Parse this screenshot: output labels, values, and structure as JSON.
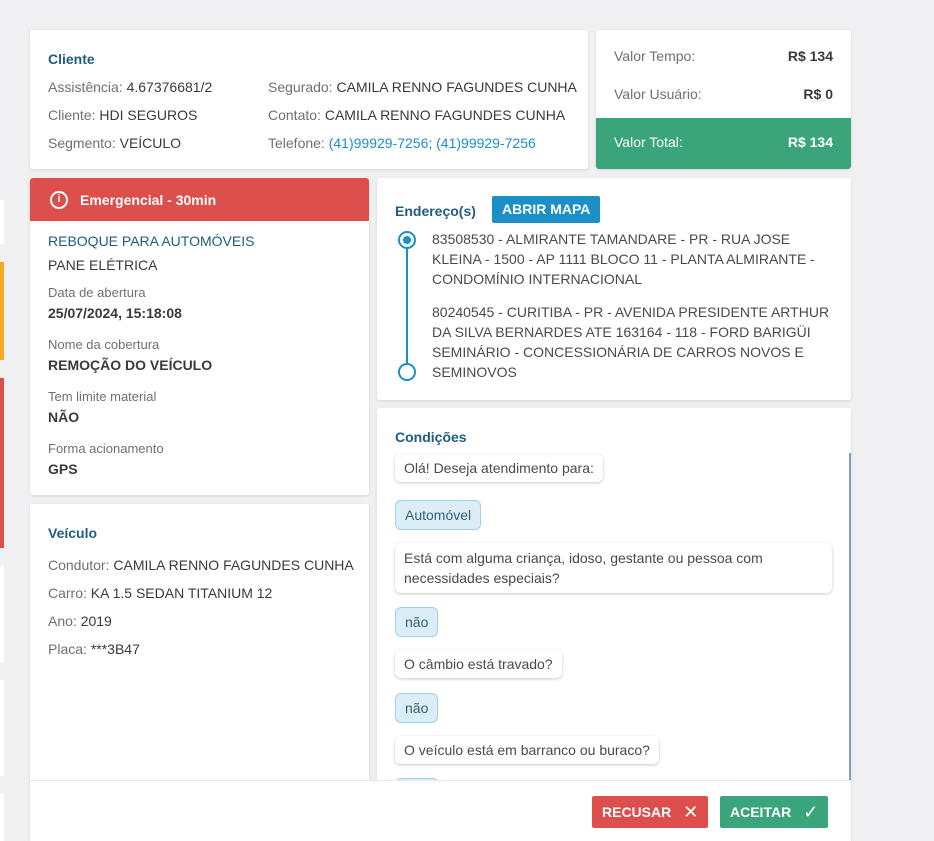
{
  "cliente": {
    "title": "Cliente",
    "assistencia_label": "Assistência:",
    "assistencia": "4.67376681/2",
    "cliente_label": "Cliente:",
    "cliente": "HDI SEGUROS",
    "segmento_label": "Segmento:",
    "segmento": "VEÍCULO",
    "segurado_label": "Segurado:",
    "segurado": "CAMILA RENNO FAGUNDES CUNHA",
    "contato_label": "Contato:",
    "contato": "CAMILA RENNO FAGUNDES CUNHA",
    "telefone_label": "Telefone:",
    "telefone": "(41)99929-7256; (41)99929-7256"
  },
  "totais": {
    "tempo_label": "Valor Tempo:",
    "tempo": "R$ 134",
    "usuario_label": "Valor Usuário:",
    "usuario": "R$ 0",
    "total_label": "Valor Total:",
    "total": "R$ 134"
  },
  "servico": {
    "header": "Emergencial - 30min",
    "header_icon": "info-icon",
    "tipo": "REBOQUE PARA AUTOMÓVEIS",
    "motivo": "PANE ELÉTRICA",
    "abertura_label": "Data de abertura",
    "abertura": "25/07/2024, 15:18:08",
    "cobertura_label": "Nome da cobertura",
    "cobertura": "REMOÇÃO DO VEÍCULO",
    "limite_label": "Tem limite material",
    "limite": "NÃO",
    "acionamento_label": "Forma acionamento",
    "acionamento": "GPS"
  },
  "veiculo": {
    "title": "Veículo",
    "condutor_label": "Condutor:",
    "condutor": "CAMILA RENNO FAGUNDES CUNHA",
    "carro_label": "Carro:",
    "carro": "KA 1.5 SEDAN TITANIUM 12",
    "ano_label": "Ano:",
    "ano": "2019",
    "placa_label": "Placa:",
    "placa": "***3B47"
  },
  "endereco": {
    "title": "Endereço(s)",
    "map_button": "ABRIR MAPA",
    "origem": "83508530 - ALMIRANTE TAMANDARE - PR - RUA JOSE KLEINA - 1500 - AP 1111 BLOCO 11 - PLANTA ALMIRANTE - CONDOMÍNIO INTERNACIONAL",
    "destino": "80240545 - CURITIBA - PR - AVENIDA PRESIDENTE ARTHUR DA SILVA BERNARDES ATE 163164 - 118 - FORD BARIGÜI SEMINÁRIO - CONCESSIONÁRIA DE CARROS NOVOS E SEMINOVOS"
  },
  "condicoes": {
    "title": "Condições",
    "messages": [
      {
        "type": "q",
        "text": "Olá! Deseja atendimento para:"
      },
      {
        "type": "a",
        "text": "Automóvel"
      },
      {
        "type": "q",
        "text": "Está com alguma criança, idoso, gestante ou pessoa com necessidades especiais?"
      },
      {
        "type": "a",
        "text": "não"
      },
      {
        "type": "q",
        "text": "O câmbio está travado?"
      },
      {
        "type": "a",
        "text": "não"
      },
      {
        "type": "q",
        "text": "O veículo está em barranco ou buraco?"
      }
    ]
  },
  "footer": {
    "recusar": "RECUSAR",
    "recusar_icon": "close-icon",
    "recusar_color": "#dc4f4c",
    "aceitar": "ACEITAR",
    "aceitar_icon": "check-icon",
    "aceitar_color": "#3aa57a"
  }
}
